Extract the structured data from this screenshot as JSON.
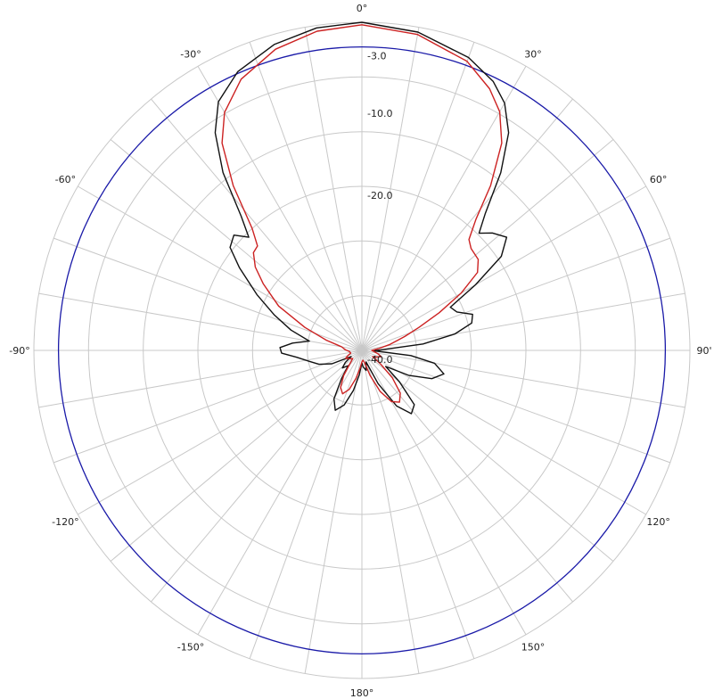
{
  "chart_data": {
    "type": "polar",
    "grid": true,
    "angle_labels": [
      "0°",
      "30°",
      "60°",
      "90'",
      "120°",
      "150°",
      "180°",
      "-150°",
      "-120°",
      "-90°",
      "-60°",
      "-30°"
    ],
    "radial_ticks": [
      {
        "label": "-3.0",
        "value": -3.0
      },
      {
        "label": "-10.0",
        "value": -10.0
      },
      {
        "label": "-20.0",
        "value": -20.0
      },
      {
        "label": "-40.0",
        "value": -40.0
      }
    ],
    "radial_range": [
      -40,
      0
    ],
    "reference_circle": {
      "value": -3.0,
      "color": "#1a1aa8"
    },
    "series": [
      {
        "color": "#111111",
        "points": [
          [
            0,
            0
          ],
          [
            10,
            -0.6
          ],
          [
            20,
            -2.0
          ],
          [
            26,
            -3.5
          ],
          [
            30,
            -5.2
          ],
          [
            34,
            -8.0
          ],
          [
            38,
            -12.5
          ],
          [
            42,
            -17.5
          ],
          [
            45,
            -19.8
          ],
          [
            48,
            -18.6
          ],
          [
            52,
            -17.6
          ],
          [
            56,
            -19.5
          ],
          [
            60,
            -24.0
          ],
          [
            64,
            -28.0
          ],
          [
            68,
            -27.5
          ],
          [
            72,
            -25.8
          ],
          [
            76,
            -26.2
          ],
          [
            80,
            -28.5
          ],
          [
            84,
            -32.5
          ],
          [
            88,
            -37.5
          ],
          [
            92,
            -38.5
          ],
          [
            96,
            -34.0
          ],
          [
            100,
            -31.0
          ],
          [
            106,
            -29.6
          ],
          [
            112,
            -30.8
          ],
          [
            118,
            -33.5
          ],
          [
            124,
            -36.5
          ],
          [
            130,
            -34.0
          ],
          [
            136,
            -30.8
          ],
          [
            142,
            -30.2
          ],
          [
            148,
            -32.0
          ],
          [
            154,
            -35.5
          ],
          [
            160,
            -38.5
          ],
          [
            168,
            -37.5
          ],
          [
            176,
            -38.0
          ],
          [
            180,
            -38.5
          ],
          [
            186,
            -37.0
          ],
          [
            192,
            -35.0
          ],
          [
            198,
            -33.0
          ],
          [
            204,
            -32.0
          ],
          [
            210,
            -33.2
          ],
          [
            216,
            -35.8
          ],
          [
            222,
            -37.5
          ],
          [
            228,
            -36.8
          ],
          [
            234,
            -37.5
          ],
          [
            240,
            -38.5
          ],
          [
            246,
            -36.0
          ],
          [
            252,
            -34.5
          ],
          [
            258,
            -33.5
          ],
          [
            264,
            -32.0
          ],
          [
            268,
            -30.2
          ],
          [
            272,
            -30.0
          ],
          [
            276,
            -31.5
          ],
          [
            280,
            -33.5
          ],
          [
            286,
            -31.0
          ],
          [
            292,
            -28.5
          ],
          [
            298,
            -25.5
          ],
          [
            304,
            -22.0
          ],
          [
            308,
            -19.6
          ],
          [
            312,
            -19.0
          ],
          [
            315,
            -20.5
          ],
          [
            318,
            -18.0
          ],
          [
            322,
            -12.5
          ],
          [
            326,
            -8.0
          ],
          [
            330,
            -5.0
          ],
          [
            336,
            -2.8
          ],
          [
            344,
            -1.2
          ],
          [
            352,
            -0.3
          ]
        ]
      },
      {
        "color": "#cc2222",
        "points": [
          [
            0,
            -0.3
          ],
          [
            10,
            -0.9
          ],
          [
            20,
            -2.5
          ],
          [
            26,
            -4.5
          ],
          [
            30,
            -6.4
          ],
          [
            34,
            -9.5
          ],
          [
            38,
            -14.5
          ],
          [
            41,
            -18.8
          ],
          [
            44,
            -21.2
          ],
          [
            47,
            -21.8
          ],
          [
            52,
            -22.0
          ],
          [
            56,
            -23.0
          ],
          [
            60,
            -26.0
          ],
          [
            64,
            -29.5
          ],
          [
            68,
            -32.5
          ],
          [
            72,
            -34.5
          ],
          [
            78,
            -36.5
          ],
          [
            84,
            -38.0
          ],
          [
            90,
            -38.8
          ],
          [
            96,
            -38.5
          ],
          [
            102,
            -38.0
          ],
          [
            108,
            -37.5
          ],
          [
            114,
            -38.0
          ],
          [
            120,
            -38.5
          ],
          [
            126,
            -37.2
          ],
          [
            132,
            -35.0
          ],
          [
            138,
            -33.0
          ],
          [
            144,
            -32.2
          ],
          [
            150,
            -32.8
          ],
          [
            156,
            -34.5
          ],
          [
            162,
            -36.8
          ],
          [
            168,
            -38.5
          ],
          [
            174,
            -38.8
          ],
          [
            180,
            -38.6
          ],
          [
            186,
            -37.8
          ],
          [
            192,
            -36.5
          ],
          [
            198,
            -35.0
          ],
          [
            204,
            -34.2
          ],
          [
            210,
            -34.8
          ],
          [
            216,
            -36.2
          ],
          [
            222,
            -37.8
          ],
          [
            228,
            -38.5
          ],
          [
            236,
            -38.2
          ],
          [
            244,
            -37.8
          ],
          [
            250,
            -38.2
          ],
          [
            256,
            -38.6
          ],
          [
            264,
            -38.5
          ],
          [
            272,
            -38.0
          ],
          [
            280,
            -37.5
          ],
          [
            286,
            -35.5
          ],
          [
            292,
            -32.5
          ],
          [
            298,
            -28.5
          ],
          [
            304,
            -25.5
          ],
          [
            308,
            -23.5
          ],
          [
            312,
            -22.2
          ],
          [
            315,
            -22.0
          ],
          [
            318,
            -20.0
          ],
          [
            322,
            -14.5
          ],
          [
            326,
            -9.5
          ],
          [
            330,
            -6.5
          ],
          [
            336,
            -3.8
          ],
          [
            344,
            -1.8
          ],
          [
            352,
            -0.7
          ]
        ]
      }
    ]
  }
}
